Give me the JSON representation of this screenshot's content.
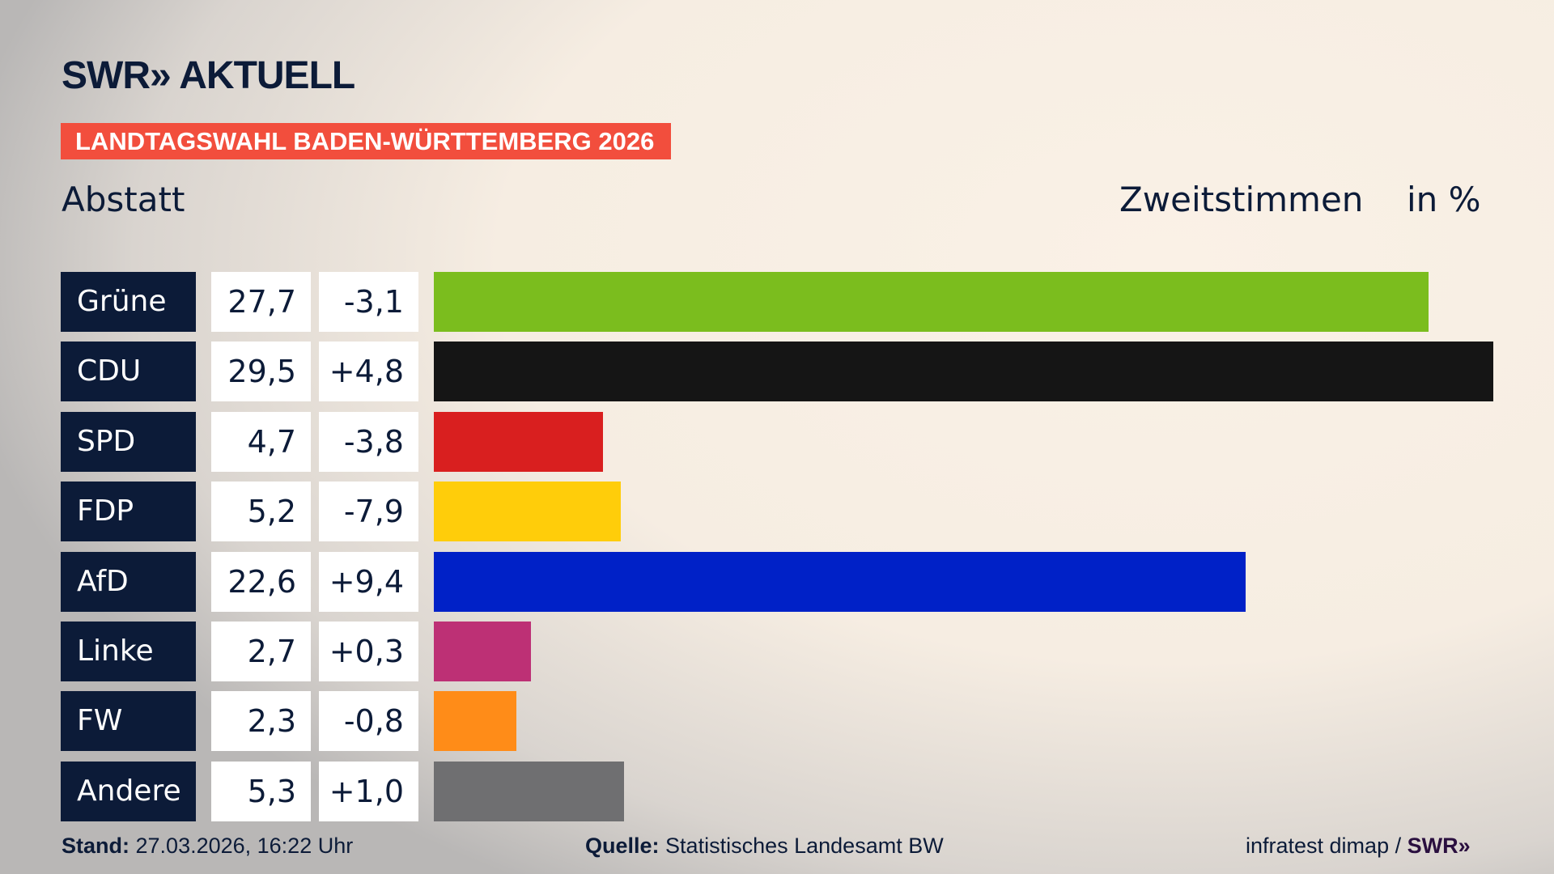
{
  "header": {
    "logo": "SWR» AKTUELL",
    "band": "LANDTAGSWAHL BADEN-WÜRTTEMBERG 2026",
    "region": "Abstatt",
    "vote_type": "Zweitstimmen",
    "unit": "in %"
  },
  "chart_data": {
    "type": "bar",
    "title": "Landtagswahl Baden-Württemberg 2026 – Abstatt – Zweitstimmen",
    "ylabel": "in %",
    "xlim": [
      0,
      29.5
    ],
    "categories": [
      "Grüne",
      "CDU",
      "SPD",
      "FDP",
      "AfD",
      "Linke",
      "FW",
      "Andere"
    ],
    "values": [
      27.7,
      29.5,
      4.7,
      5.2,
      22.6,
      2.7,
      2.3,
      5.3
    ],
    "value_labels": [
      "27,7",
      "29,5",
      "4,7",
      "5,2",
      "22,6",
      "2,7",
      "2,3",
      "5,3"
    ],
    "diff_labels": [
      "-3,1",
      "+4,8",
      "-3,8",
      "-7,9",
      "+9,4",
      "+0,3",
      "-0,8",
      "+1,0"
    ],
    "colors": [
      "#7bbd1e",
      "#151515",
      "#d91f1f",
      "#ffcd0a",
      "#0021c7",
      "#bd3075",
      "#ff8c18",
      "#6f6f71"
    ]
  },
  "footer": {
    "stand_label": "Stand:",
    "stand_value": "27.03.2026, 16:22 Uhr",
    "source_label": "Quelle:",
    "source_value": "Statistisches Landesamt BW",
    "credit": "infratest dimap /",
    "credit_logo": "SWR»"
  }
}
